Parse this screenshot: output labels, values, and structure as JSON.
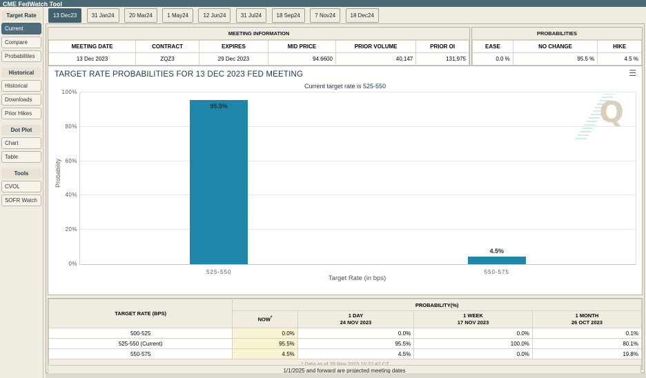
{
  "topbar": {
    "title": "CME FedWatch Tool"
  },
  "sidebar": {
    "sections": [
      {
        "header": "Target Rate",
        "items": [
          {
            "label": "Current",
            "active": true
          },
          {
            "label": "Compare",
            "active": false
          },
          {
            "label": "Probabilities",
            "active": false
          }
        ]
      },
      {
        "header": "Historical",
        "items": [
          {
            "label": "Historical",
            "active": false
          },
          {
            "label": "Downloads",
            "active": false
          },
          {
            "label": "Prior Hikes",
            "active": false
          }
        ]
      },
      {
        "header": "Dot Plot",
        "items": [
          {
            "label": "Chart",
            "active": false
          },
          {
            "label": "Table",
            "active": false
          }
        ]
      },
      {
        "header": "Tools",
        "items": [
          {
            "label": "CVOL",
            "active": false
          },
          {
            "label": "SOFR Watch",
            "active": false
          }
        ]
      }
    ]
  },
  "tabs": [
    {
      "label": "13 Dec23",
      "active": true
    },
    {
      "label": "31 Jan24",
      "active": false
    },
    {
      "label": "20 Mar24",
      "active": false
    },
    {
      "label": "1 May24",
      "active": false
    },
    {
      "label": "12 Jun24",
      "active": false
    },
    {
      "label": "31 Jul24",
      "active": false
    },
    {
      "label": "18 Sep24",
      "active": false
    },
    {
      "label": "7 Nov24",
      "active": false
    },
    {
      "label": "18 Dec24",
      "active": false
    }
  ],
  "meeting_info": {
    "title": "MEETING INFORMATION",
    "headers": [
      "MEETING DATE",
      "CONTRACT",
      "EXPIRES",
      "MID PRICE",
      "PRIOR VOLUME",
      "PRIOR OI"
    ],
    "values": [
      "13 Dec 2023",
      "ZQZ3",
      "29 Dec 2023",
      "94.6600",
      "40,147",
      "131,975"
    ]
  },
  "probabilities_box": {
    "title": "PROBABILITIES",
    "headers": [
      "EASE",
      "NO CHANGE",
      "HIKE"
    ],
    "values": [
      "0.0 %",
      "95.5 %",
      "4.5 %"
    ]
  },
  "chart": {
    "menu_icon": "☰"
  },
  "watermark": "Q",
  "chart_data": {
    "type": "bar",
    "title": "TARGET RATE PROBABILITIES FOR 13 DEC 2023 FED MEETING",
    "subtitle": "Current target rate is 525-550",
    "categories": [
      "525-550",
      "550-575"
    ],
    "values": [
      95.5,
      4.5
    ],
    "bar_labels": [
      "95.5%",
      "4.5%"
    ],
    "xlabel": "Target Rate (in bps)",
    "ylabel": "Probability",
    "ylim": [
      0,
      100
    ],
    "ytick_step": 20,
    "yticks": [
      "0%",
      "20%",
      "40%",
      "60%",
      "80%",
      "100%"
    ],
    "bar_color": "#1e86a8",
    "grid": true,
    "legend": "none"
  },
  "probability_table": {
    "col1_header": "TARGET RATE (BPS)",
    "group_header": "PROBABILITY(%)",
    "columns": [
      {
        "label": "NOW",
        "sup": "*",
        "date": ""
      },
      {
        "label": "1 DAY",
        "date": "24 NOV 2023"
      },
      {
        "label": "1 WEEK",
        "date": "17 NOV 2023"
      },
      {
        "label": "1 MONTH",
        "date": "26 OCT 2023"
      }
    ],
    "rows": [
      {
        "rate": "500-525",
        "now": "0.0%",
        "day": "0.0%",
        "week": "0.0%",
        "month": "0.1%"
      },
      {
        "rate": "525-550 (Current)",
        "now": "95.5%",
        "day": "95.5%",
        "week": "100.0%",
        "month": "80.1%"
      },
      {
        "rate": "550-575",
        "now": "4.5%",
        "day": "4.5%",
        "week": "0.0%",
        "month": "19.8%"
      }
    ],
    "footnote": "* Data as of 26 Nov 2023 10:22:42 CT",
    "note": "1/1/2025 and forward are projected meeting dates"
  }
}
